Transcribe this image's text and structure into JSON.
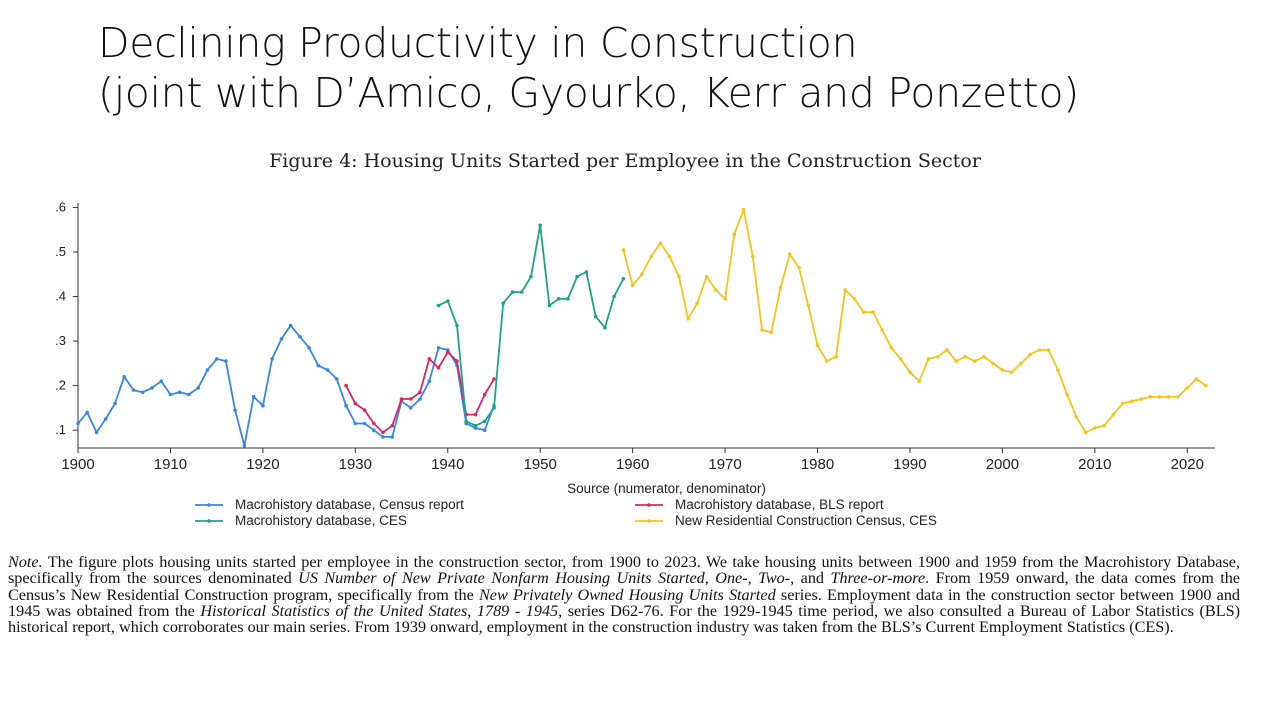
{
  "slide": {
    "title_line1": "Declining Productivity in Construction",
    "title_line2": "(joint with D’Amico, Gyourko, Kerr and Ponzetto)"
  },
  "figure": {
    "caption": "Figure 4: Housing Units Started per Employee in the Construction Sector"
  },
  "note": {
    "label": "Note.",
    "t1": " The figure plots housing units started per employee in the construction sector, from 1900 to 2023. We take housing units between 1900 and 1959 from the Macrohistory Database, specifically from the sources denominated ",
    "i1": "US Number of New Private Nonfarm Housing Units Started, One-, Two-,",
    "t2": " and ",
    "i2": "Three-or-more",
    "t3": ". From 1959 onward, the data comes from the Census’s New Residential Construction program, specifically from the ",
    "i3": "New Privately Owned Housing Units Started",
    "t4": " series. Employment data in the construction sector between 1900 and 1945 was obtained from the ",
    "i4": "Historical Statistics of the United States, 1789 - 1945",
    "t5": ", series D62-76. For the 1929-1945 time period, we also consulted a Bureau of Labor Statistics (BLS) historical report, which corroborates our main series. From 1939 onward, employment in the construction industry was taken from the BLS’s Current Employment Statistics (CES)."
  },
  "chart_data": {
    "type": "line",
    "title": "Figure 4: Housing Units Started per Employee in the Construction Sector",
    "xlabel": "",
    "ylabel": "",
    "xlim": [
      1900,
      2023
    ],
    "ylim": [
      0.06,
      0.61
    ],
    "xticks": [
      1900,
      1910,
      1920,
      1930,
      1940,
      1950,
      1960,
      1970,
      1980,
      1990,
      2000,
      2010,
      2020
    ],
    "yticks": [
      0.1,
      0.2,
      0.3,
      0.4,
      0.5,
      0.6
    ],
    "ytick_labels": [
      ".1",
      ".2",
      ".3",
      ".4",
      ".5",
      ".6"
    ],
    "legend_title": "Source (numerator, denominator)",
    "legend_position": "bottom",
    "series": [
      {
        "name": "Macrohistory database, Census report",
        "color": "#3a86e8",
        "x": [
          1900,
          1901,
          1902,
          1903,
          1904,
          1905,
          1906,
          1907,
          1908,
          1909,
          1910,
          1911,
          1912,
          1913,
          1914,
          1915,
          1916,
          1917,
          1918,
          1919,
          1920,
          1921,
          1922,
          1923,
          1924,
          1925,
          1926,
          1927,
          1928,
          1929,
          1930,
          1931,
          1932,
          1933,
          1934,
          1935,
          1936,
          1937,
          1938,
          1939,
          1940,
          1941,
          1942,
          1943,
          1944,
          1945
        ],
        "y": [
          0.115,
          0.14,
          0.095,
          0.125,
          0.16,
          0.22,
          0.19,
          0.185,
          0.195,
          0.21,
          0.18,
          0.185,
          0.18,
          0.195,
          0.235,
          0.26,
          0.255,
          0.145,
          0.065,
          0.175,
          0.155,
          0.26,
          0.305,
          0.335,
          0.31,
          0.285,
          0.245,
          0.235,
          0.215,
          0.155,
          0.115,
          0.115,
          0.1,
          0.085,
          0.085,
          0.165,
          0.15,
          0.17,
          0.21,
          0.285,
          0.28,
          0.245,
          0.115,
          0.105,
          0.1,
          0.155
        ]
      },
      {
        "name": "Macrohistory database, BLS report",
        "color": "#e0245e",
        "x": [
          1929,
          1930,
          1931,
          1932,
          1933,
          1934,
          1935,
          1936,
          1937,
          1938,
          1939,
          1940,
          1941,
          1942,
          1943,
          1944,
          1945
        ],
        "y": [
          0.2,
          0.16,
          0.145,
          0.115,
          0.095,
          0.11,
          0.17,
          0.17,
          0.185,
          0.26,
          0.24,
          0.275,
          0.255,
          0.135,
          0.135,
          0.18,
          0.215
        ]
      },
      {
        "name": "Macrohistory database, CES",
        "color": "#1ea38a",
        "x": [
          1939,
          1940,
          1941,
          1942,
          1943,
          1944,
          1945,
          1946,
          1947,
          1948,
          1949,
          1950,
          1951,
          1952,
          1953,
          1954,
          1955,
          1956,
          1957,
          1958,
          1959
        ],
        "y": [
          0.38,
          0.39,
          0.335,
          0.12,
          0.11,
          0.12,
          0.15,
          0.385,
          0.41,
          0.41,
          0.445,
          0.56,
          0.38,
          0.395,
          0.395,
          0.445,
          0.455,
          0.355,
          0.33,
          0.4,
          0.44
        ]
      },
      {
        "name": "New Residential Construction Census, CES",
        "color": "#f5c518",
        "x": [
          1959,
          1960,
          1961,
          1962,
          1963,
          1964,
          1965,
          1966,
          1967,
          1968,
          1969,
          1970,
          1971,
          1972,
          1973,
          1974,
          1975,
          1976,
          1977,
          1978,
          1979,
          1980,
          1981,
          1982,
          1983,
          1984,
          1985,
          1986,
          1987,
          1988,
          1989,
          1990,
          1991,
          1992,
          1993,
          1994,
          1995,
          1996,
          1997,
          1998,
          1999,
          2000,
          2001,
          2002,
          2003,
          2004,
          2005,
          2006,
          2007,
          2008,
          2009,
          2010,
          2011,
          2012,
          2013,
          2014,
          2015,
          2016,
          2017,
          2018,
          2019,
          2020,
          2021,
          2022
        ],
        "y": [
          0.505,
          0.425,
          0.45,
          0.49,
          0.52,
          0.49,
          0.445,
          0.35,
          0.385,
          0.445,
          0.415,
          0.395,
          0.54,
          0.595,
          0.49,
          0.325,
          0.32,
          0.42,
          0.495,
          0.465,
          0.38,
          0.29,
          0.255,
          0.265,
          0.415,
          0.395,
          0.365,
          0.365,
          0.325,
          0.285,
          0.26,
          0.23,
          0.21,
          0.26,
          0.265,
          0.28,
          0.255,
          0.265,
          0.255,
          0.265,
          0.25,
          0.235,
          0.23,
          0.25,
          0.27,
          0.28,
          0.28,
          0.235,
          0.18,
          0.13,
          0.095,
          0.105,
          0.11,
          0.135,
          0.16,
          0.165,
          0.17,
          0.175,
          0.175,
          0.175,
          0.175,
          0.195,
          0.215,
          0.2
        ]
      }
    ]
  }
}
